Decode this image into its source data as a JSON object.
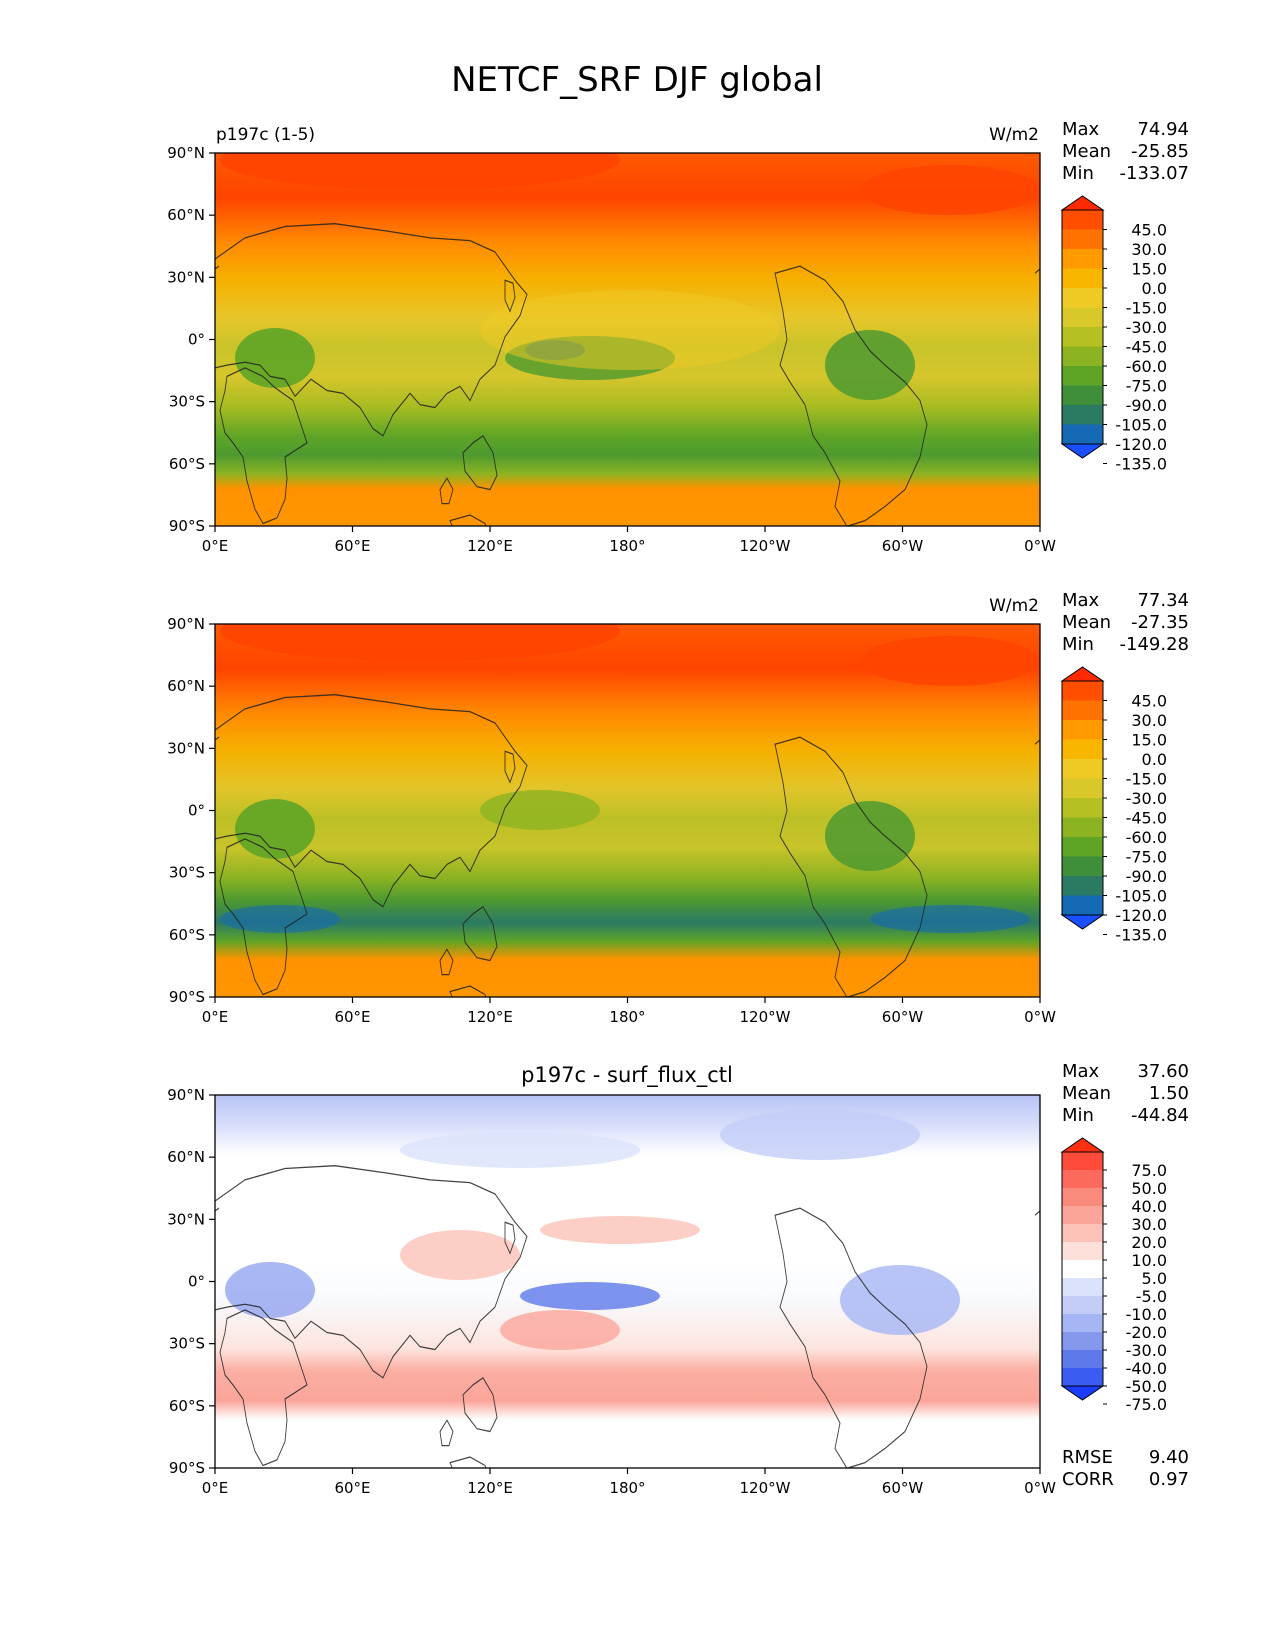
{
  "title": "NETCF_SRF DJF global",
  "xticks": [
    "0°E",
    "60°E",
    "120°E",
    "180°",
    "120°W",
    "60°W",
    "0°W"
  ],
  "yticks": [
    "90°N",
    "60°N",
    "30°N",
    "0°",
    "30°S",
    "60°S",
    "90°S"
  ],
  "stat_labels": {
    "max": "Max",
    "mean": "Mean",
    "min": "Min",
    "rmse": "RMSE",
    "corr": "CORR"
  },
  "panels": [
    {
      "left_title": "p197c (1-5)",
      "center_title": "",
      "units": "W/m2",
      "stats": {
        "max": "74.94",
        "mean": "-25.85",
        "min": "-133.07"
      },
      "colorbar": {
        "labels": [
          "45.0",
          "30.0",
          "15.0",
          "0.0",
          "-15.0",
          "-30.0",
          "-45.0",
          "-60.0",
          "-75.0",
          "-90.0",
          "-105.0",
          "-120.0",
          "-135.0"
        ],
        "colors": [
          "#ff2a00",
          "#ff4e00",
          "#ff7200",
          "#ff9a00",
          "#f8b600",
          "#f0ca24",
          "#d9c82a",
          "#b5c022",
          "#8cb322",
          "#5ea526",
          "#3f8f3a",
          "#2b7a64",
          "#1669b4",
          "#1a4fff"
        ]
      }
    },
    {
      "left_title": "",
      "center_title": "",
      "units": "W/m2",
      "stats": {
        "max": "77.34",
        "mean": "-27.35",
        "min": "-149.28"
      },
      "colorbar": {
        "labels": [
          "45.0",
          "30.0",
          "15.0",
          "0.0",
          "-15.0",
          "-30.0",
          "-45.0",
          "-60.0",
          "-75.0",
          "-90.0",
          "-105.0",
          "-120.0",
          "-135.0"
        ],
        "colors": [
          "#ff2a00",
          "#ff4e00",
          "#ff7200",
          "#ff9a00",
          "#f8b600",
          "#f0ca24",
          "#d9c82a",
          "#b5c022",
          "#8cb322",
          "#5ea526",
          "#3f8f3a",
          "#2b7a64",
          "#1669b4",
          "#1a4fff"
        ]
      }
    },
    {
      "left_title": "",
      "center_title": "p197c - surf_flux_ctl",
      "units": "",
      "stats": {
        "max": "37.60",
        "mean": "1.50",
        "min": "-44.84",
        "rmse": "9.40",
        "corr": "0.97"
      },
      "colorbar": {
        "labels": [
          "75.0",
          "50.0",
          "40.0",
          "30.0",
          "20.0",
          "10.0",
          "5.0",
          "-5.0",
          "-10.0",
          "-20.0",
          "-30.0",
          "-40.0",
          "-50.0",
          "-75.0"
        ],
        "colors": [
          "#ff3010",
          "#ff4b3a",
          "#fb6a5c",
          "#fa8a7c",
          "#fba59a",
          "#fcc2b8",
          "#fde0da",
          "#ffffff",
          "#dbe2fb",
          "#c3cdf7",
          "#a6b5f4",
          "#8498ee",
          "#5d79ea",
          "#3b5cf0",
          "#1a3cff"
        ]
      }
    }
  ]
}
